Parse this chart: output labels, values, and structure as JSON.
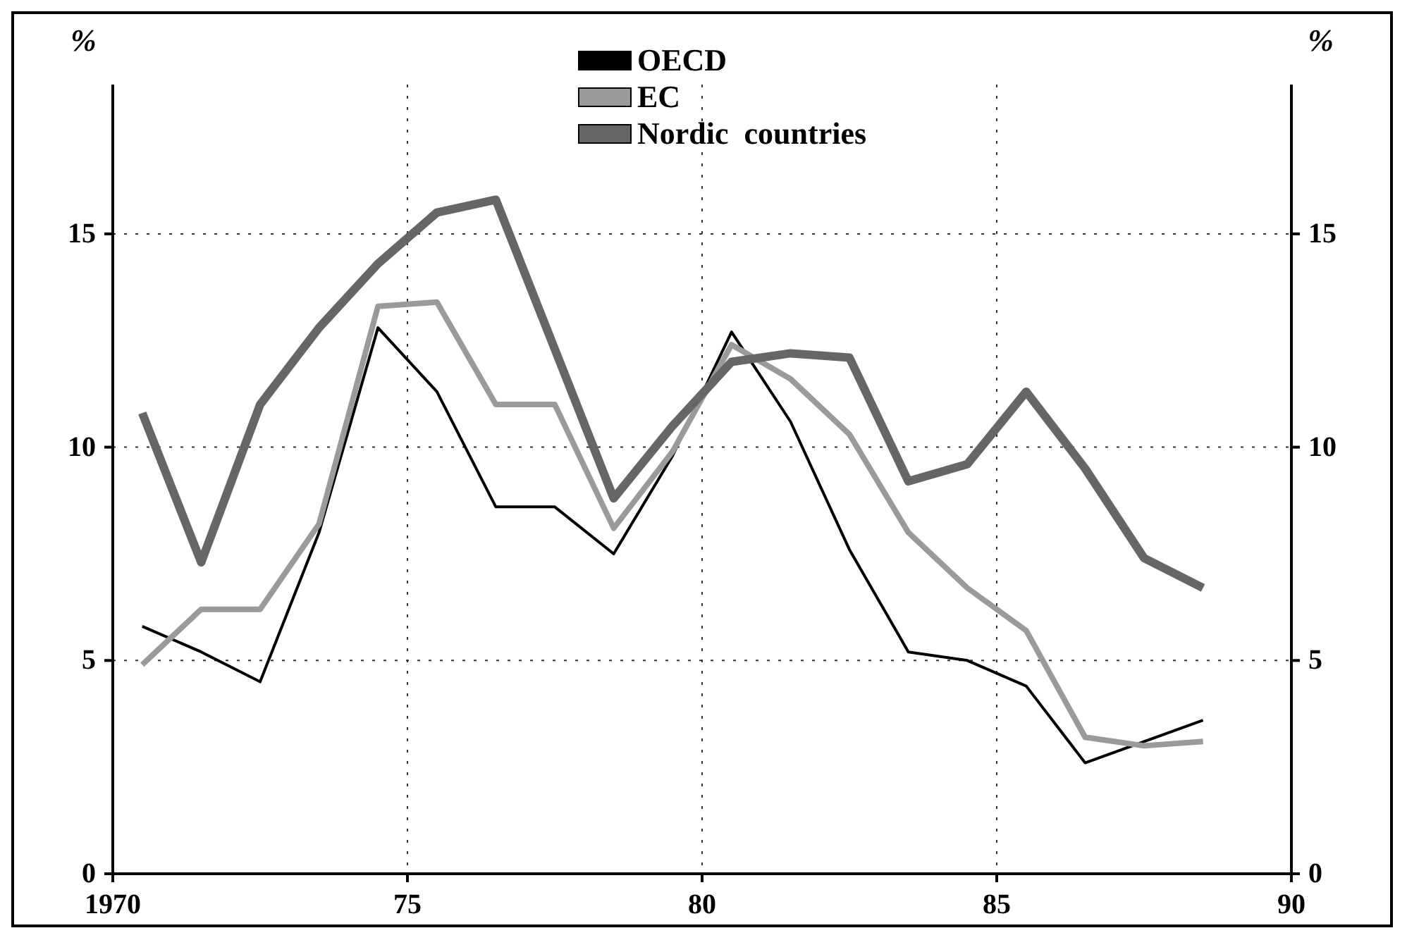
{
  "chart_data": {
    "type": "line",
    "ylabel": "%",
    "y2label": "%",
    "x": [
      1970.5,
      1971.5,
      1972.5,
      1973.5,
      1974.5,
      1975.5,
      1976.5,
      1977.5,
      1978.5,
      1979.5,
      1980.5,
      1981.5,
      1982.5,
      1983.5,
      1984.5,
      1985.5,
      1986.5,
      1987.5,
      1988.5
    ],
    "series": [
      {
        "name": "OECD",
        "color": "#000000",
        "values": [
          5.8,
          5.2,
          4.5,
          8.0,
          12.8,
          11.3,
          8.6,
          8.6,
          7.5,
          9.8,
          12.7,
          10.6,
          7.6,
          5.2,
          5.0,
          4.4,
          2.6,
          3.1,
          3.6
        ]
      },
      {
        "name": "EC",
        "color": "#9a9a9a",
        "values": [
          4.9,
          6.2,
          6.2,
          8.2,
          13.3,
          13.4,
          11.0,
          11.0,
          8.1,
          9.9,
          12.4,
          11.6,
          10.3,
          8.0,
          6.7,
          5.7,
          3.2,
          3.0,
          3.1
        ]
      },
      {
        "name": "Nordic  countries",
        "color": "#666666",
        "values": [
          10.8,
          7.3,
          11.0,
          12.8,
          14.3,
          15.5,
          15.8,
          12.3,
          8.8,
          10.5,
          12.0,
          12.2,
          12.1,
          9.2,
          9.6,
          11.3,
          9.5,
          7.4,
          6.7
        ]
      }
    ],
    "xlim": [
      1970,
      1990
    ],
    "xticks": [
      1970,
      {
        "value": 1975,
        "label": "75"
      },
      {
        "value": 1980,
        "label": "80"
      },
      {
        "value": 1985,
        "label": "85"
      },
      {
        "value": 1990,
        "label": "90"
      }
    ],
    "ylim": [
      0,
      18.5
    ],
    "yticks": [
      0,
      5,
      10,
      15
    ],
    "y2lim": [
      0,
      18.5
    ],
    "y2ticks": [
      0,
      5,
      10,
      15
    ],
    "grid": true,
    "legend": "top",
    "marker": "none",
    "line_style": "solid"
  }
}
